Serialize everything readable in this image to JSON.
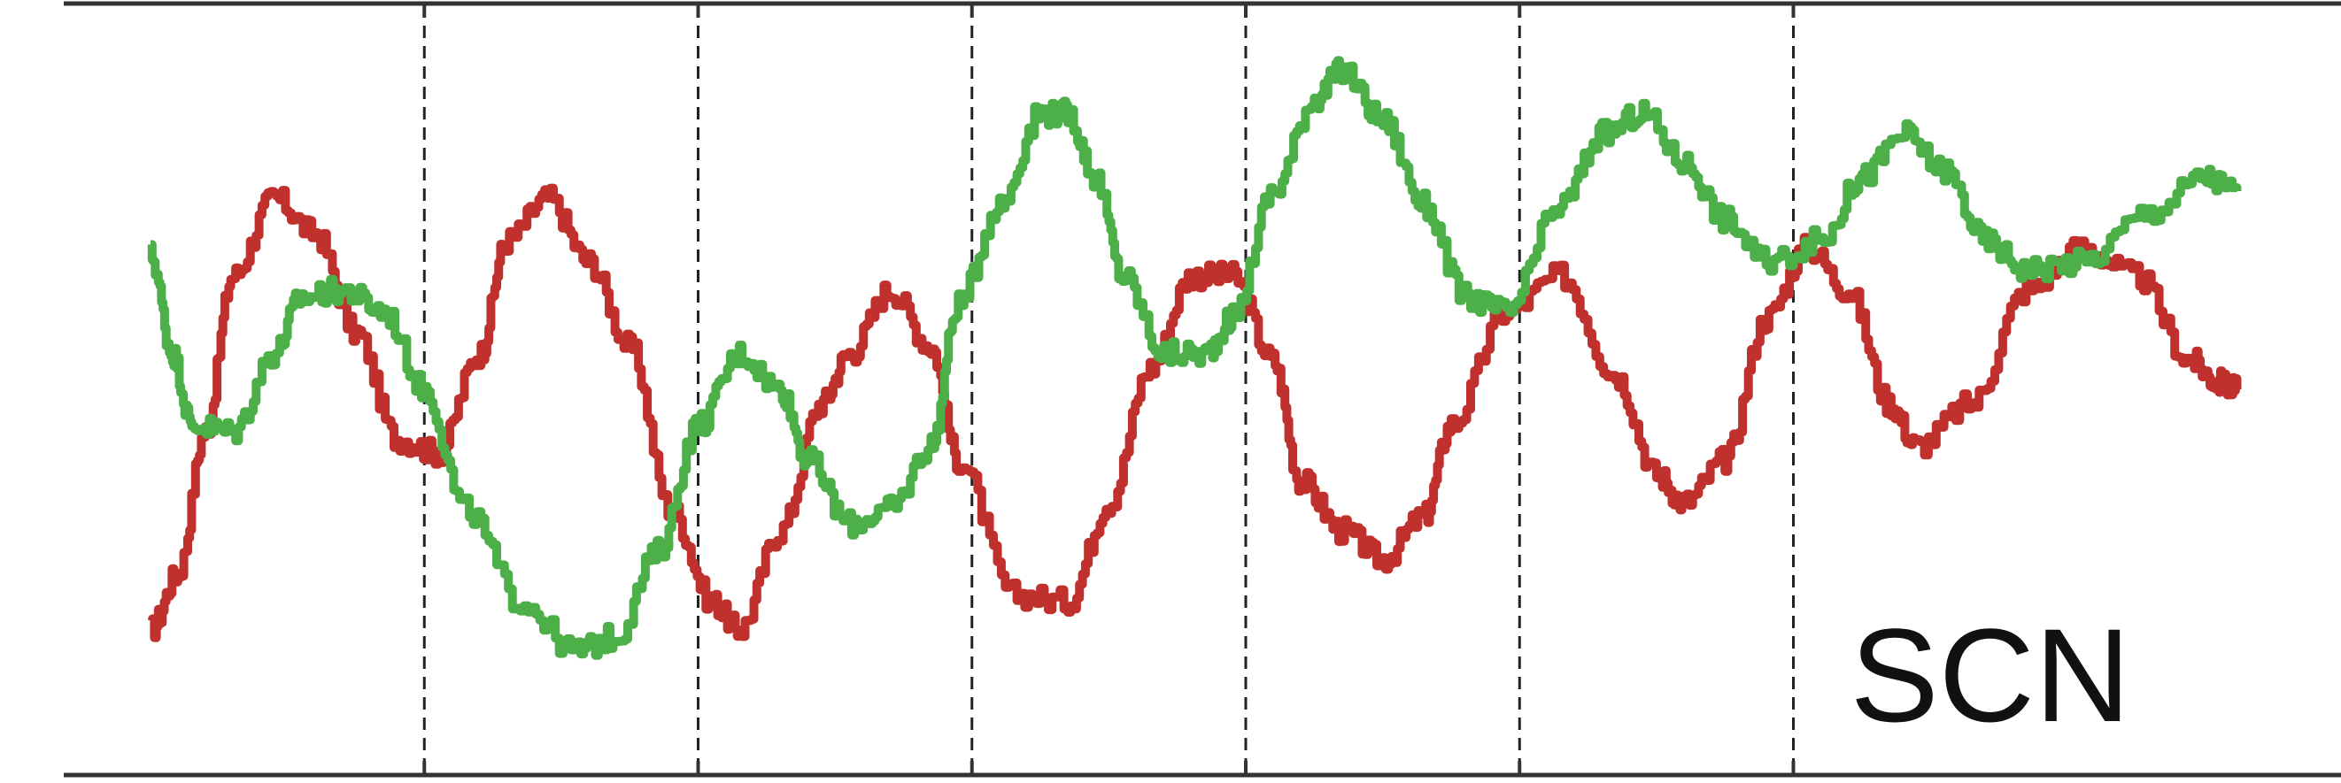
{
  "chart_data": {
    "type": "line",
    "title": "",
    "xlabel": "",
    "ylabel": "",
    "annotation": "SCN",
    "xlim": [
      0,
      8
    ],
    "ylim": [
      0,
      1
    ],
    "grid_x_dashed_at": [
      1,
      2,
      3,
      4,
      5,
      6
    ],
    "frame": "top-bottom",
    "series": [
      {
        "color": "#c0302d",
        "x": [
          0,
          0.1,
          0.2,
          0.3,
          0.45,
          0.6,
          0.75,
          0.9,
          1.05,
          1.2,
          1.3,
          1.45,
          1.6,
          1.75,
          1.9,
          2.05,
          2.15,
          2.3,
          2.45,
          2.55,
          2.7,
          2.85,
          2.95,
          3.15,
          3.35,
          3.5,
          3.65,
          3.8,
          3.95,
          4.1,
          4.2,
          4.35,
          4.5,
          4.65,
          4.75,
          4.95,
          5.15,
          5.35,
          5.5,
          5.6,
          5.75,
          5.9,
          6.05,
          6.2,
          6.35,
          6.45,
          6.65,
          6.85,
          7.05,
          7.25,
          7.45,
          7.55,
          7.62
        ],
        "y": [
          0.16,
          0.24,
          0.44,
          0.66,
          0.77,
          0.72,
          0.58,
          0.43,
          0.41,
          0.55,
          0.71,
          0.77,
          0.68,
          0.56,
          0.33,
          0.2,
          0.16,
          0.3,
          0.48,
          0.55,
          0.64,
          0.56,
          0.4,
          0.21,
          0.2,
          0.34,
          0.53,
          0.66,
          0.66,
          0.54,
          0.37,
          0.3,
          0.26,
          0.32,
          0.45,
          0.61,
          0.66,
          0.52,
          0.38,
          0.34,
          0.4,
          0.6,
          0.7,
          0.64,
          0.48,
          0.42,
          0.48,
          0.64,
          0.7,
          0.66,
          0.54,
          0.51,
          0.5
        ]
      },
      {
        "color": "#4caf48",
        "x": [
          0,
          0.08,
          0.15,
          0.3,
          0.45,
          0.55,
          0.7,
          0.85,
          1.0,
          1.15,
          1.35,
          1.55,
          1.7,
          1.85,
          2.0,
          2.15,
          2.3,
          2.4,
          2.55,
          2.7,
          2.85,
          2.95,
          3.1,
          3.25,
          3.35,
          3.45,
          3.55,
          3.7,
          3.85,
          3.95,
          4.1,
          4.25,
          4.35,
          4.5,
          4.65,
          4.8,
          4.95,
          5.15,
          5.3,
          5.45,
          5.6,
          5.75,
          5.9,
          6.1,
          6.25,
          6.4,
          6.55,
          6.7,
          6.85,
          7.05,
          7.3,
          7.5,
          7.62
        ],
        "y": [
          0.69,
          0.55,
          0.45,
          0.44,
          0.55,
          0.63,
          0.64,
          0.61,
          0.5,
          0.33,
          0.2,
          0.13,
          0.15,
          0.27,
          0.45,
          0.55,
          0.5,
          0.4,
          0.31,
          0.33,
          0.42,
          0.62,
          0.76,
          0.89,
          0.89,
          0.8,
          0.66,
          0.55,
          0.55,
          0.6,
          0.78,
          0.91,
          0.95,
          0.88,
          0.76,
          0.63,
          0.61,
          0.76,
          0.86,
          0.89,
          0.82,
          0.74,
          0.68,
          0.71,
          0.8,
          0.86,
          0.81,
          0.71,
          0.67,
          0.68,
          0.75,
          0.8,
          0.78
        ]
      }
    ]
  }
}
